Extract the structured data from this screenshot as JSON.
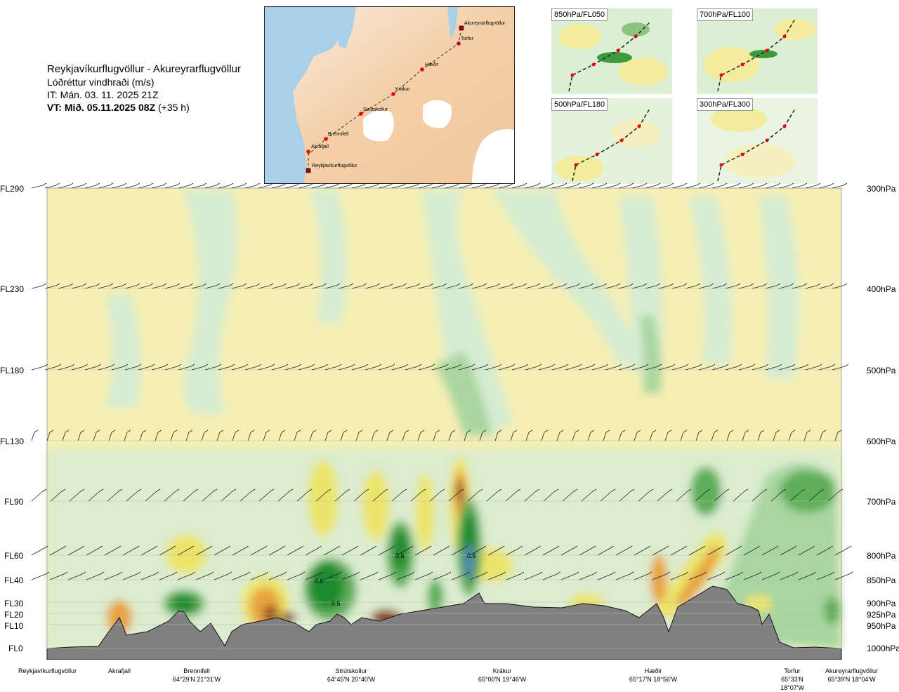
{
  "header": {
    "route": "Reykjavíkurflugvöllur - Akureyrarflugvöllur",
    "parameter": "Lóðréttur vindhraði (m/s)",
    "issue_time": "IT: Mán. 03. 11. 2025 21Z",
    "valid_prefix": "VT: Mið. 05.11.2025 08Z",
    "valid_suffix": "(+35 h)"
  },
  "route_map": {
    "waypoints": [
      "Akureyrarflugvöllur",
      "Torfur",
      "Hæðir",
      "Krákur",
      "Strútskollur",
      "Brennifell",
      "Akrafjall",
      "Reykjavíkurflugvöllur"
    ]
  },
  "mini_maps": [
    {
      "label": "850hPa/FL050"
    },
    {
      "label": "700hPa/FL100"
    },
    {
      "label": "500hPa/FL180"
    },
    {
      "label": "300hPa/FL300"
    }
  ],
  "levels": [
    {
      "fl": "FL290",
      "hpa": "300hPa"
    },
    {
      "fl": "FL230",
      "hpa": "400hPa"
    },
    {
      "fl": "FL180",
      "hpa": "500hPa"
    },
    {
      "fl": "FL130",
      "hpa": "600hPa"
    },
    {
      "fl": "FL90",
      "hpa": "700hPa"
    },
    {
      "fl": "FL60",
      "hpa": "800hPa"
    },
    {
      "fl": "FL40",
      "hpa": "850hPa"
    },
    {
      "fl": "FL30",
      "hpa": "900hPa"
    },
    {
      "fl": "FL20",
      "hpa": "925hPa"
    },
    {
      "fl": "FL10",
      "hpa": "950hPa"
    },
    {
      "fl": "FL0",
      "hpa": "1000hPa"
    }
  ],
  "stations": [
    {
      "name": "Reykjavíkurflugvöllur",
      "coord": ""
    },
    {
      "name": "Akrafjall",
      "coord": ""
    },
    {
      "name": "Brennifell",
      "coord": "64°29'N 21°31'W"
    },
    {
      "name": "Strútskollur",
      "coord": "64°45'N 20°40'W"
    },
    {
      "name": "Krákur",
      "coord": "65°00'N 19°46'W"
    },
    {
      "name": "Hæðir",
      "coord": "65°17'N 18°56'W"
    },
    {
      "name": "Torfur",
      "coord": "65°33'N 18°07'W"
    },
    {
      "name": "Akureyrarflugvöllur",
      "coord": "65°39'N 18°04'W"
    }
  ],
  "chart_data": {
    "type": "heatmap",
    "title": "Reykjavíkurflugvöllur - Akureyrarflugvöllur",
    "subtitle": "Lóðréttur vindhraði (m/s)",
    "y_axis_left": [
      "FL290",
      "FL230",
      "FL180",
      "FL130",
      "FL90",
      "FL60",
      "FL40",
      "FL30",
      "FL20",
      "FL10",
      "FL0"
    ],
    "y_axis_right": [
      "300hPa",
      "400hPa",
      "500hPa",
      "600hPa",
      "700hPa",
      "800hPa",
      "850hPa",
      "900hPa",
      "925hPa",
      "950hPa",
      "1000hPa"
    ],
    "contour_labels": [
      "0.6",
      "0.6",
      "0.6",
      "0.5"
    ],
    "colors": {
      "strong_down": "#8b4513",
      "moderate_down": "#e8a33a",
      "weak_down": "#ece46a",
      "slight_down": "#f6efb4",
      "neutral": "#ffffff",
      "slight_up": "#d6ecd2",
      "weak_up": "#a9d6a0",
      "moderate_up": "#5fae5a",
      "strong_up": "#1e8a2e",
      "very_strong_up": "#5a88c0",
      "terrain": "#808080"
    }
  }
}
